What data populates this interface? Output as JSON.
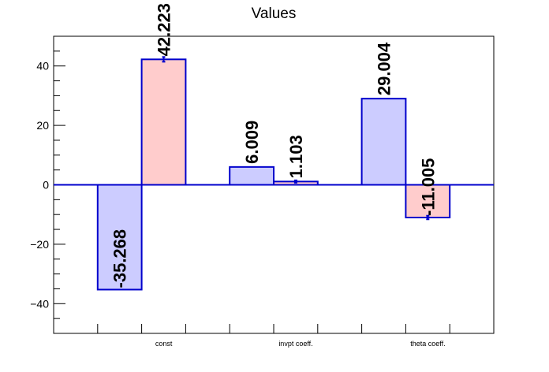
{
  "chart_data": {
    "type": "bar",
    "title": "Values",
    "categories": [
      "const",
      "invpt coeff.",
      "theta coeff."
    ],
    "ylim": [
      -50,
      50
    ],
    "yticks": [
      -40,
      -20,
      0,
      20,
      40
    ],
    "ytick_labels": [
      "−40",
      "−20",
      "0",
      "20",
      "40"
    ],
    "series": [
      {
        "values": [
          -35.268,
          6.009,
          29.004
        ],
        "labels": [
          "-35.268",
          "6.009",
          "29.004"
        ],
        "errors": [
          0,
          0,
          0
        ],
        "fill": "#ccccff",
        "stroke": "#0000cc"
      },
      {
        "values": [
          42.223,
          1.103,
          -11.005
        ],
        "labels": [
          "42.223",
          "1.103",
          "-11.005"
        ],
        "errors": [
          0.8,
          0.4,
          0.6
        ],
        "fill": "#ffcccc",
        "stroke": "#0000cc"
      }
    ],
    "grid": false,
    "legend": "none"
  }
}
